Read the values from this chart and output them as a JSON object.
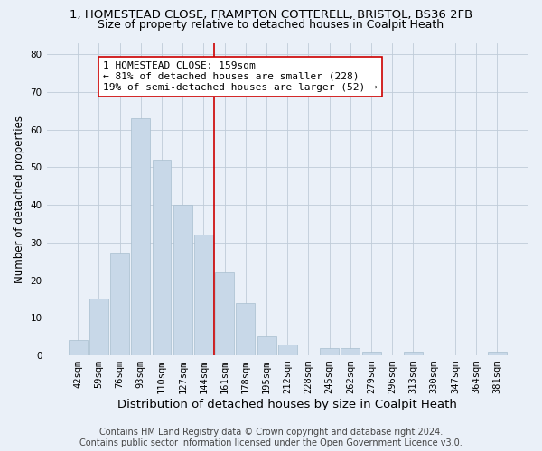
{
  "title_line1": "1, HOMESTEAD CLOSE, FRAMPTON COTTERELL, BRISTOL, BS36 2FB",
  "title_line2": "Size of property relative to detached houses in Coalpit Heath",
  "xlabel": "Distribution of detached houses by size in Coalpit Heath",
  "ylabel": "Number of detached properties",
  "categories": [
    "42sqm",
    "59sqm",
    "76sqm",
    "93sqm",
    "110sqm",
    "127sqm",
    "144sqm",
    "161sqm",
    "178sqm",
    "195sqm",
    "212sqm",
    "228sqm",
    "245sqm",
    "262sqm",
    "279sqm",
    "296sqm",
    "313sqm",
    "330sqm",
    "347sqm",
    "364sqm",
    "381sqm"
  ],
  "values": [
    4,
    15,
    27,
    63,
    52,
    40,
    32,
    22,
    14,
    5,
    3,
    0,
    2,
    2,
    1,
    0,
    1,
    0,
    0,
    0,
    1
  ],
  "bar_color": "#c8d8e8",
  "bar_edge_color": "#a8bece",
  "ylim": [
    0,
    83
  ],
  "yticks": [
    0,
    10,
    20,
    30,
    40,
    50,
    60,
    70,
    80
  ],
  "vline_color": "#cc0000",
  "vline_x_index": 7,
  "annotation_text": "1 HOMESTEAD CLOSE: 159sqm\n← 81% of detached houses are smaller (228)\n19% of semi-detached houses are larger (52) →",
  "annotation_box_facecolor": "#ffffff",
  "annotation_box_edgecolor": "#cc0000",
  "bg_color": "#eaf0f8",
  "grid_color": "#c0ccd8",
  "footer_text": "Contains HM Land Registry data © Crown copyright and database right 2024.\nContains public sector information licensed under the Open Government Licence v3.0.",
  "title1_fontsize": 9.5,
  "title2_fontsize": 9.0,
  "xlabel_fontsize": 9.5,
  "ylabel_fontsize": 8.5,
  "tick_fontsize": 7.5,
  "annot_fontsize": 8.0,
  "footer_fontsize": 7.0
}
